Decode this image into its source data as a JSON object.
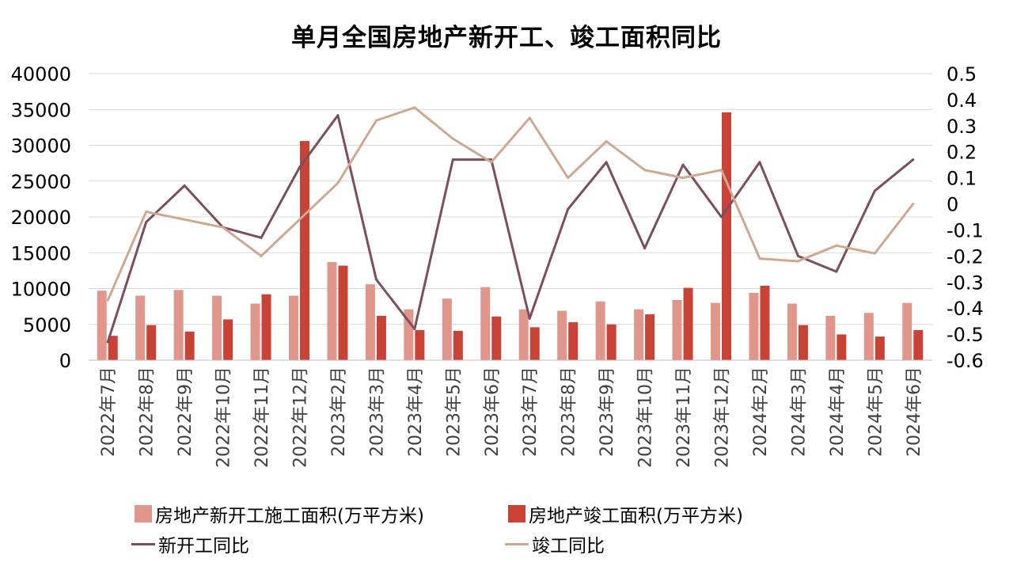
{
  "chart_data": {
    "type": "bar",
    "title": "单月全国房地产新开工、竣工面积同比",
    "categories": [
      "2022年7月",
      "2022年8月",
      "2022年9月",
      "2022年10月",
      "2022年11月",
      "2022年12月",
      "2023年2月",
      "2023年3月",
      "2023年4月",
      "2023年5月",
      "2023年6月",
      "2023年7月",
      "2023年8月",
      "2023年9月",
      "2023年10月",
      "2023年11月",
      "2023年12月",
      "2024年2月",
      "2024年3月",
      "2024年4月",
      "2024年5月",
      "2024年6月"
    ],
    "left_axis": {
      "ylim": [
        0,
        40000
      ],
      "ticks": [
        0,
        5000,
        10000,
        15000,
        20000,
        25000,
        30000,
        35000,
        40000
      ]
    },
    "right_axis": {
      "ylim": [
        -0.6,
        0.5
      ],
      "ticks": [
        "-0.6",
        "-0.5",
        "-0.4",
        "-0.3",
        "-0.2",
        "-0.1",
        "0",
        "0.1",
        "0.2",
        "0.3",
        "0.4",
        "0.5"
      ]
    },
    "grid": true,
    "legend_position": "bottom",
    "series": [
      {
        "name": "房地产新开工施工面积(万平方米)",
        "type": "bar",
        "axis": "left",
        "color": "#E0968A",
        "values": [
          9700,
          9000,
          9800,
          9000,
          7900,
          9000,
          13700,
          10600,
          7100,
          8600,
          10200,
          7100,
          6900,
          8200,
          7100,
          8400,
          8000,
          9400,
          7900,
          6200,
          6600,
          8000
        ]
      },
      {
        "name": "房地产竣工面积(万平方米)",
        "type": "bar",
        "axis": "left",
        "color": "#C84235",
        "values": [
          3400,
          4900,
          4000,
          5700,
          9200,
          30600,
          13200,
          6200,
          4200,
          4100,
          6100,
          4600,
          5300,
          5000,
          6400,
          10100,
          34600,
          10400,
          4900,
          3600,
          3300,
          4200
        ]
      },
      {
        "name": "新开工同比",
        "type": "line",
        "axis": "right",
        "color": "#7B4F5C",
        "values": [
          -0.53,
          -0.07,
          0.07,
          -0.09,
          -0.13,
          0.14,
          0.34,
          -0.29,
          -0.48,
          0.17,
          0.17,
          -0.44,
          -0.02,
          0.16,
          -0.17,
          0.15,
          -0.05,
          0.16,
          -0.2,
          -0.26,
          0.05,
          0.17
        ]
      },
      {
        "name": "竣工同比",
        "type": "line",
        "axis": "right",
        "color": "#D0A890",
        "values": [
          -0.37,
          -0.03,
          -0.06,
          -0.09,
          -0.2,
          -0.06,
          0.08,
          0.32,
          0.37,
          0.25,
          0.16,
          0.33,
          0.1,
          0.24,
          0.13,
          0.1,
          0.13,
          -0.21,
          -0.22,
          -0.16,
          -0.19,
          0.0
        ]
      }
    ]
  }
}
